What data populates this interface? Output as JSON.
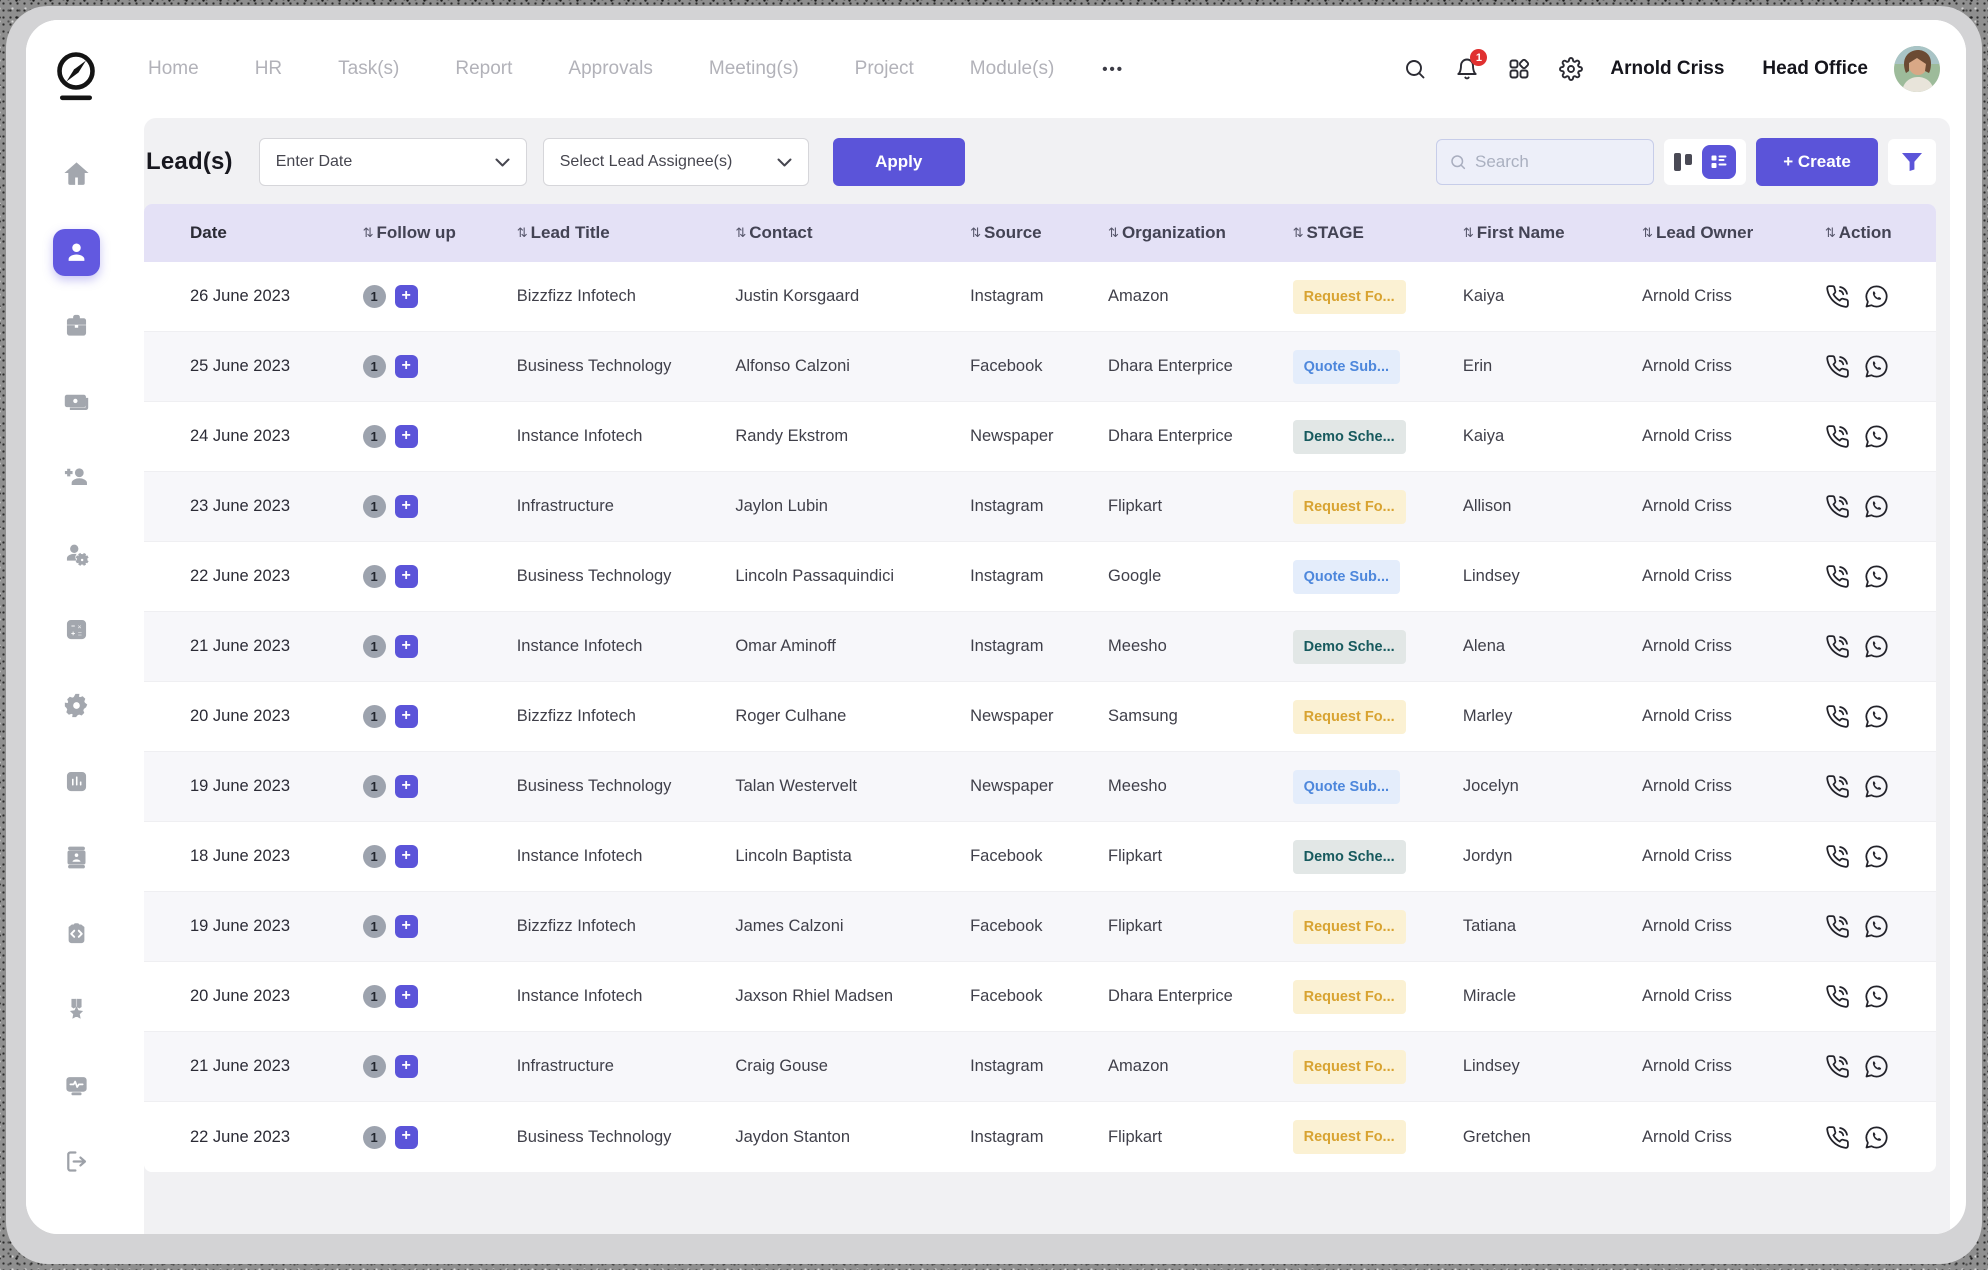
{
  "nav": {
    "items": [
      "Home",
      "HR",
      "Task(s)",
      "Report",
      "Approvals",
      "Meeting(s)",
      "Project",
      "Module(s)"
    ],
    "more_label": "•••",
    "notification_count": "1",
    "user_name": "Arnold Criss",
    "office_name": "Head Office"
  },
  "toolbar": {
    "title": "Lead(s)",
    "date_filter_placeholder": "Enter Date",
    "assignee_filter_placeholder": "Select Lead Assignee(s)",
    "apply_label": "Apply",
    "search_placeholder": "Search",
    "create_label": "+ Create"
  },
  "sidebar": {
    "icons": [
      "compass-logo",
      "home",
      "leads",
      "briefcase",
      "payroll",
      "add-user",
      "user-settings",
      "calculator",
      "settings",
      "reports",
      "id-card",
      "code",
      "rewards",
      "monitoring",
      "logout"
    ],
    "active_item": "leads"
  },
  "stage_styles": {
    "request": {
      "bg": "#fbf1d3",
      "text": "#d8a331"
    },
    "quote": {
      "bg": "#e4edfb",
      "text": "#4d87dc"
    },
    "demo": {
      "bg": "#e2e7e6",
      "text": "#175a5e"
    }
  },
  "colors": {
    "accent": "#5b54d9",
    "header_bg": "#e4e1f6",
    "notification": "#e03131"
  },
  "table": {
    "columns": [
      {
        "key": "date",
        "label": "Date",
        "sortable": false
      },
      {
        "key": "followup",
        "label": "Follow up",
        "sortable": true
      },
      {
        "key": "lead_title",
        "label": "Lead Title",
        "sortable": true
      },
      {
        "key": "contact",
        "label": "Contact",
        "sortable": true
      },
      {
        "key": "source",
        "label": "Source",
        "sortable": true
      },
      {
        "key": "organization",
        "label": "Organization",
        "sortable": true
      },
      {
        "key": "stage",
        "label": "STAGE",
        "sortable": true
      },
      {
        "key": "first_name",
        "label": "First Name",
        "sortable": true
      },
      {
        "key": "lead_owner",
        "label": "Lead Owner",
        "sortable": true
      },
      {
        "key": "action",
        "label": "Action",
        "sortable": true
      }
    ],
    "rows": [
      {
        "date": "26 June 2023",
        "followup": "1",
        "lead_title": "Bizzfizz Infotech",
        "contact": "Justin Korsgaard",
        "source": "Instagram",
        "organization": "Amazon",
        "stage": {
          "label": "Request Fo...",
          "type": "request"
        },
        "first_name": "Kaiya",
        "lead_owner": "Arnold Criss"
      },
      {
        "date": "25 June 2023",
        "followup": "1",
        "lead_title": "Business Technology",
        "contact": "Alfonso Calzoni",
        "source": "Facebook",
        "organization": "Dhara Enterprice",
        "stage": {
          "label": "Quote Sub...",
          "type": "quote"
        },
        "first_name": "Erin",
        "lead_owner": "Arnold Criss"
      },
      {
        "date": "24 June 2023",
        "followup": "1",
        "lead_title": "Instance Infotech",
        "contact": "Randy Ekstrom",
        "source": "Newspaper",
        "organization": "Dhara Enterprice",
        "stage": {
          "label": "Demo Sche...",
          "type": "demo"
        },
        "first_name": "Kaiya",
        "lead_owner": "Arnold Criss"
      },
      {
        "date": "23 June 2023",
        "followup": "1",
        "lead_title": "Infrastructure",
        "contact": "Jaylon Lubin",
        "source": "Instagram",
        "organization": "Flipkart",
        "stage": {
          "label": "Request Fo...",
          "type": "request"
        },
        "first_name": "Allison",
        "lead_owner": "Arnold Criss"
      },
      {
        "date": "22 June 2023",
        "followup": "1",
        "lead_title": "Business Technology",
        "contact": "Lincoln Passaquindici",
        "source": "Instagram",
        "organization": "Google",
        "stage": {
          "label": "Quote Sub...",
          "type": "quote"
        },
        "first_name": "Lindsey",
        "lead_owner": "Arnold Criss"
      },
      {
        "date": "21 June 2023",
        "followup": "1",
        "lead_title": "Instance Infotech",
        "contact": "Omar Aminoff",
        "source": "Instagram",
        "organization": "Meesho",
        "stage": {
          "label": "Demo Sche...",
          "type": "demo"
        },
        "first_name": "Alena",
        "lead_owner": "Arnold Criss"
      },
      {
        "date": "20 June 2023",
        "followup": "1",
        "lead_title": "Bizzfizz Infotech",
        "contact": "Roger Culhane",
        "source": "Newspaper",
        "organization": "Samsung",
        "stage": {
          "label": "Request Fo...",
          "type": "request"
        },
        "first_name": "Marley",
        "lead_owner": "Arnold Criss"
      },
      {
        "date": "19 June 2023",
        "followup": "1",
        "lead_title": "Business Technology",
        "contact": "Talan Westervelt",
        "source": "Newspaper",
        "organization": "Meesho",
        "stage": {
          "label": "Quote Sub...",
          "type": "quote"
        },
        "first_name": "Jocelyn",
        "lead_owner": "Arnold Criss"
      },
      {
        "date": "18 June 2023",
        "followup": "1",
        "lead_title": "Instance Infotech",
        "contact": "Lincoln Baptista",
        "source": "Facebook",
        "organization": "Flipkart",
        "stage": {
          "label": "Demo Sche...",
          "type": "demo"
        },
        "first_name": "Jordyn",
        "lead_owner": "Arnold Criss"
      },
      {
        "date": "19 June 2023",
        "followup": "1",
        "lead_title": "Bizzfizz Infotech",
        "contact": "James Calzoni",
        "source": "Facebook",
        "organization": "Flipkart",
        "stage": {
          "label": "Request Fo...",
          "type": "request"
        },
        "first_name": "Tatiana",
        "lead_owner": "Arnold Criss"
      },
      {
        "date": "20 June 2023",
        "followup": "1",
        "lead_title": "Instance Infotech",
        "contact": "Jaxson Rhiel Madsen",
        "source": "Facebook",
        "organization": "Dhara Enterprice",
        "stage": {
          "label": "Request Fo...",
          "type": "request"
        },
        "first_name": "Miracle",
        "lead_owner": "Arnold Criss"
      },
      {
        "date": "21 June 2023",
        "followup": "1",
        "lead_title": "Infrastructure",
        "contact": "Craig Gouse",
        "source": "Instagram",
        "organization": "Amazon",
        "stage": {
          "label": "Request Fo...",
          "type": "request"
        },
        "first_name": "Lindsey",
        "lead_owner": "Arnold Criss"
      },
      {
        "date": "22 June 2023",
        "followup": "1",
        "lead_title": "Business Technology",
        "contact": "Jaydon Stanton",
        "source": "Instagram",
        "organization": "Flipkart",
        "stage": {
          "label": "Request Fo...",
          "type": "request"
        },
        "first_name": "Gretchen",
        "lead_owner": "Arnold Criss"
      }
    ]
  }
}
